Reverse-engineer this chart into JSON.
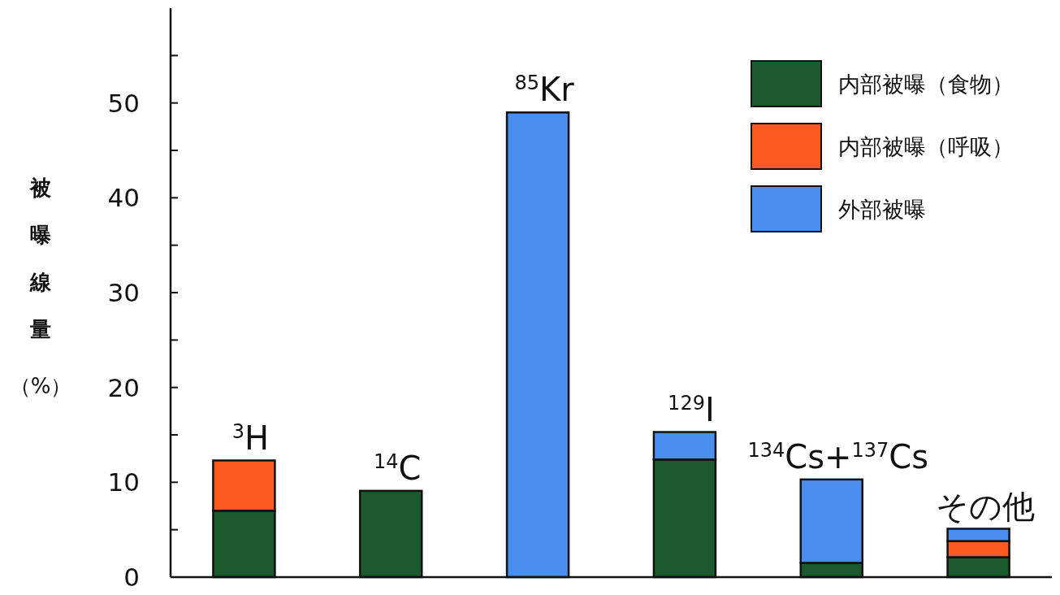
{
  "chart_data": {
    "type": "bar",
    "stacked": true,
    "categories": [
      "$^{3}$H",
      "$^{14}$C",
      "$^{85}$Kr",
      "$^{129}$I",
      "$^{134}$Cs+$^{137}$Cs",
      "その他"
    ],
    "ylabel": "被曝線量（%）",
    "ylim": [
      0,
      60
    ],
    "yticks": [
      0,
      {
        "value": 5,
        "label": null
      },
      10,
      {
        "value": 15,
        "label": null
      },
      20,
      {
        "value": 25,
        "label": null
      },
      30,
      {
        "value": 35,
        "label": null
      },
      40,
      {
        "value": 45,
        "label": null
      },
      50,
      {
        "value": 55,
        "label": null
      }
    ],
    "series": [
      {
        "name": "内部被曝（食物）",
        "color": "#1b5a2c",
        "values": [
          7,
          9.1,
          null,
          12.4,
          1.5,
          2.1
        ]
      },
      {
        "name": "内部被曝（呼吸）",
        "color": "#ff5a22",
        "values": [
          5.3,
          null,
          null,
          null,
          null,
          1.7
        ]
      },
      {
        "name": "外部被曝",
        "color": "#4a8ef0",
        "values": [
          null,
          null,
          49,
          2.9,
          8.8,
          1.3
        ]
      }
    ],
    "grid": false,
    "legend": "top right"
  }
}
